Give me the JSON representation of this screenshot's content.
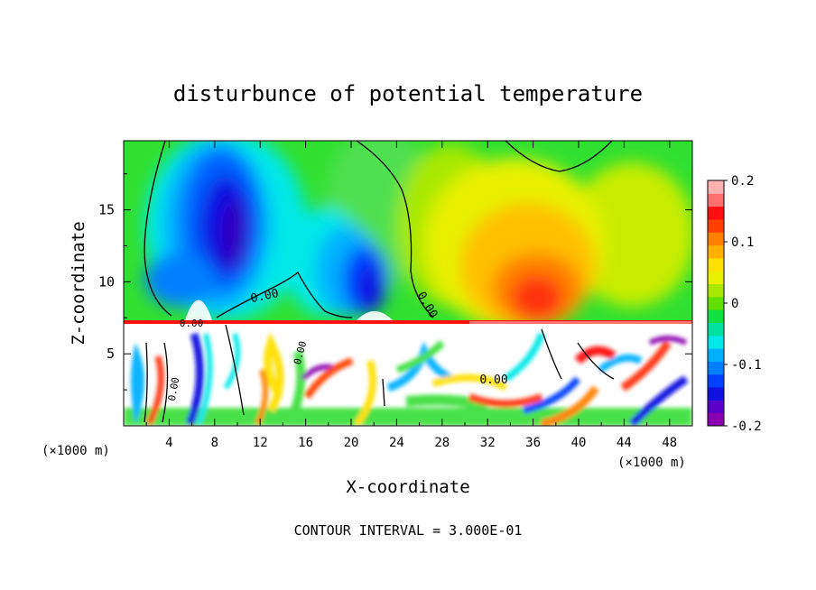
{
  "chart_data": {
    "type": "heatmap",
    "title": "disturbunce of potential temperature",
    "xlabel": "X-coordinate",
    "ylabel": "Z-coordinate",
    "x_unit_label": "(×1000 m)",
    "z_unit_label": "(×1000 m)",
    "xlim": [
      0,
      50
    ],
    "ylim": [
      0,
      19.8
    ],
    "xticks": [
      "4",
      "8",
      "12",
      "16",
      "20",
      "24",
      "28",
      "32",
      "36",
      "40",
      "44",
      "48"
    ],
    "yticks": [
      "5",
      "10",
      "15"
    ],
    "colorbar": {
      "range": [
        -0.2,
        0.2
      ],
      "ticks": [
        "0.2",
        "0.1",
        "0",
        "-0.1",
        "-0.2"
      ],
      "colors": [
        "#8a00b0",
        "#5a00c8",
        "#1010e0",
        "#0040ff",
        "#0080ff",
        "#00b0ff",
        "#00e8e8",
        "#00e0a0",
        "#10e040",
        "#60e000",
        "#a8e800",
        "#e8f000",
        "#ffe000",
        "#ffb000",
        "#ff8000",
        "#ff4000",
        "#ff1010",
        "#ff7070",
        "#ffb0b0"
      ]
    },
    "contour_labels": [
      "0.00",
      "0.00",
      "0.00",
      "0.00",
      "0.00",
      "0.00"
    ],
    "footer": "CONTOUR INTERVAL = 3.000E-01"
  }
}
